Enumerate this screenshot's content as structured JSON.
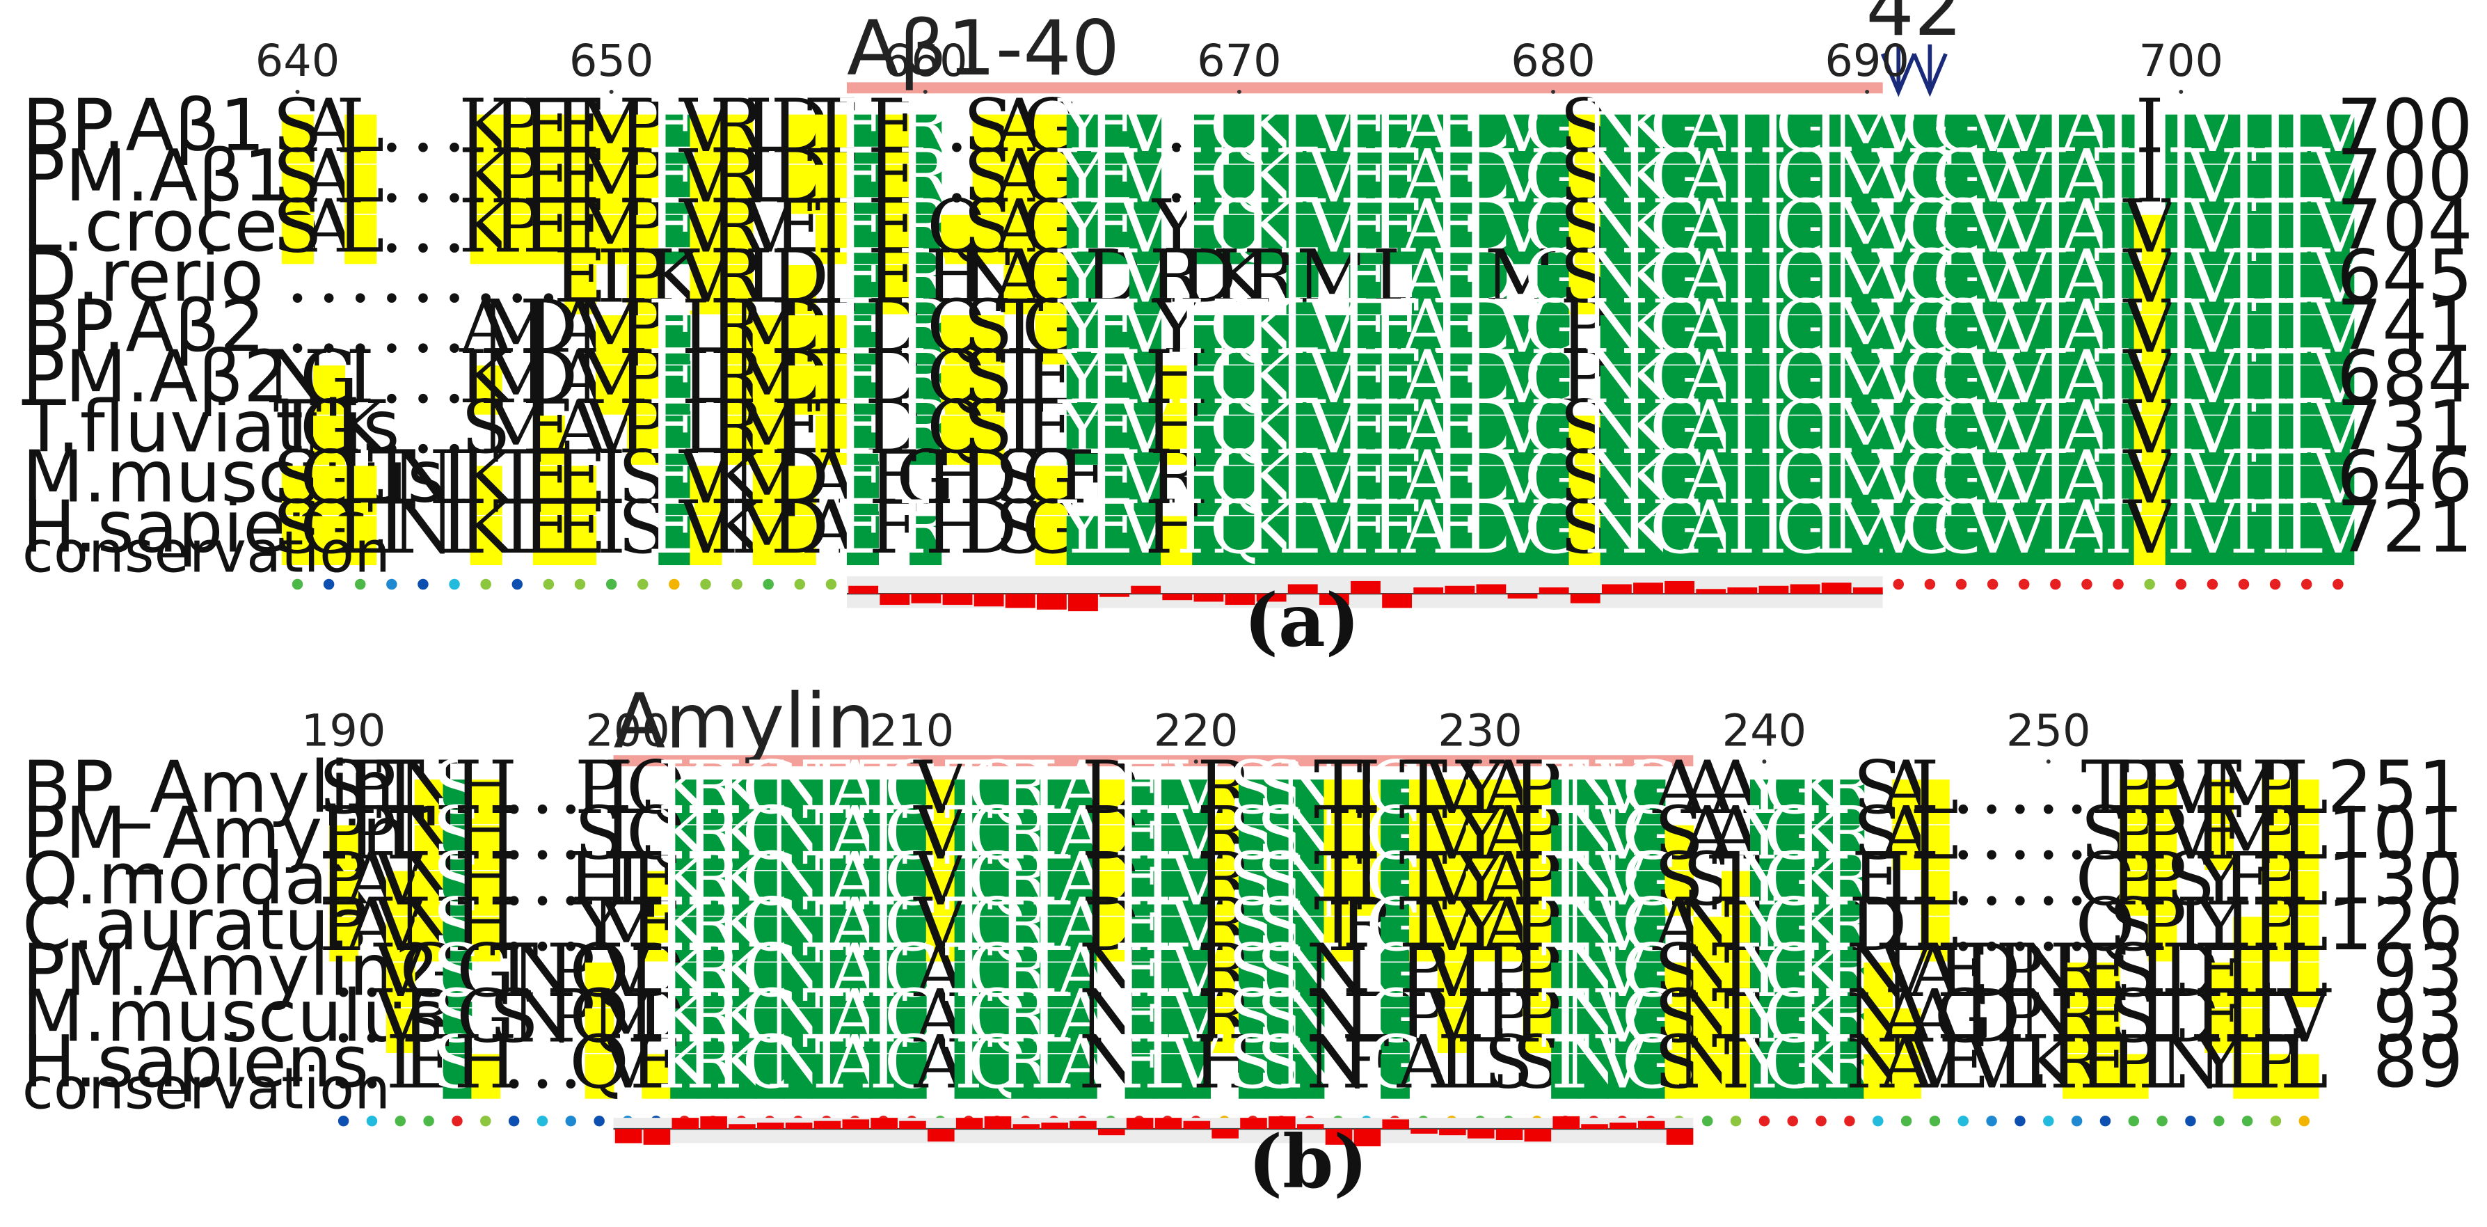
{
  "colors": {
    "identical": "#009A3E",
    "similar": "#FFFF00",
    "region_bar": "#F4A09A",
    "conservation_bar": "#EE0000",
    "arrow": "#1A2A7A"
  },
  "panels": [
    {
      "label": "(a)",
      "region": {
        "label": "Aβ1-40",
        "start": 658,
        "end": 690
      },
      "marker": {
        "label": "42",
        "positions": [
          691,
          692
        ]
      },
      "ticks": [
        640,
        650,
        660,
        670,
        680,
        690,
        700
      ],
      "conservation_label": "conservation",
      "rows": [
        {
          "name": "BP.Aβ1",
          "seq": "SAL...KPEEMPEVRLDTEER.SAGYEV.HQKLVFFAEDVGSNKGAIIGLMVGGVVIATIIVITLV",
          "end": "700"
        },
        {
          "name": "PM.Aβ1",
          "seq": "SAL...KPEEMPEVRLDTEER.SAGYEV.HQKLVFFAEDVGSNKGAIIGLMVGGVVIATIIVITLV",
          "end": "700"
        },
        {
          "name": "L.crocea",
          "seq": "SAL...KPEEMPEVRVETEERQSAGYEVYHQKLVFFAEDVGSNKGAIIGLMVGGVVIATVIVITLV",
          "end": "704"
        },
        {
          "name": "D.rerio",
          "seq": ".........EIPKVRLDIEERHNAGYDVRDKRLMFLAEDMGSNKGAIIGLMVGGVVIATVIVITLV",
          "end": "645"
        },
        {
          "name": "BP.Aβ2",
          "seq": "......AMDAMPELRMDTEDRQSTGYEVYHQKLVFFAEDVGPNKGAIIGLMVGGVVIATVIVITLV",
          "end": "741"
        },
        {
          "name": "PM.Aβ2",
          "seq": "NGI...KMDAMPELRMDTEDRQSTEYEVHHQKLVFFAEDVGPNKGAIIGLMVGGVVIATVIVITLV",
          "end": "684"
        },
        {
          "name": "T.fluviatilis",
          "seq": "TGK...SMEAVPELRMETEDRQSTEYEVHHQKLVFFAEDVGSNKGAIIGLMVGGVVIATVIVITLV",
          "end": "731"
        },
        {
          "name": "M.musculus",
          "seq": "SGLTNIKTEEISEVKMDAEFGHDSGFEVRHQKLVFFAEDVGSNKGAIIGLMVGGVVIATVIVITLV",
          "end": "646"
        },
        {
          "name": "H.sapiens",
          "seq": "SGLTNIKTEEISEVKMDAEFRHDSGYEVHHQKLVFFAEDVGSNKGAIIGLMVGGVVIATVIVITLV",
          "end": "721"
        }
      ]
    },
    {
      "label": "(b)",
      "region": {
        "label": "Amylin",
        "start": 200,
        "end": 237
      },
      "ticks": [
        190,
        200,
        210,
        220,
        230,
        240,
        250
      ],
      "conservation_label": "conservation",
      "rows": [
        {
          "name": "BP_Amylin",
          "seq": "SPTNSH...PLQKRKCNTATCVTQRLADFLVRSSNTIGTVYAPTNVGAAAYGKRSAL.....TPPVFMPL",
          "end": "251"
        },
        {
          "name": "PM_Amylin1",
          "seq": "PPTNSH...SLQKRKCNTATCVTQRLADFLVRSSNTIGTVYAPTNVGSAAYGKRSAL.....SPPVFMPL",
          "end": "101"
        },
        {
          "name": "O.mordax",
          "seq": "PAVNSH...HIEKRKCNTATCVTQRLADFLVRSSNTIGTVYAPTNVGSSTYGKRELL.....QPPSYFPL",
          "end": "130"
        },
        {
          "name": "C.auratus",
          "seq": "PAVNSH...YMEKRKCNTATCVTQRLADFLVRSSNTRGTVYAPTNVGANTYGKRDLL.....QSPIYLPL",
          "end": "126"
        },
        {
          "name": "PM.Amylin2",
          "seq": "..VGSGTNPQVDKRKCNTATCATQRLANFLVRSSNNLGPVLPPTNVGSNTYGKRNVAEDPNRESLDFLLL",
          "end": "93"
        },
        {
          "name": "M.musculus",
          "seq": "..VRSGSNPQMDKRKCNTATCATQRLANFLVRSSNNLGPVLPPTNVGSNTYGKRNAAGDPNRESLDFLLV",
          "end": "93"
        },
        {
          "name": "H.sapiens",
          "seq": "..IESH...QVEKRKCNTATCATQRLANFLVHSSNNFGAILSSTNVGSNTYGKRNAVEVLKREPLNYLPL",
          "end": "89"
        }
      ]
    }
  ]
}
